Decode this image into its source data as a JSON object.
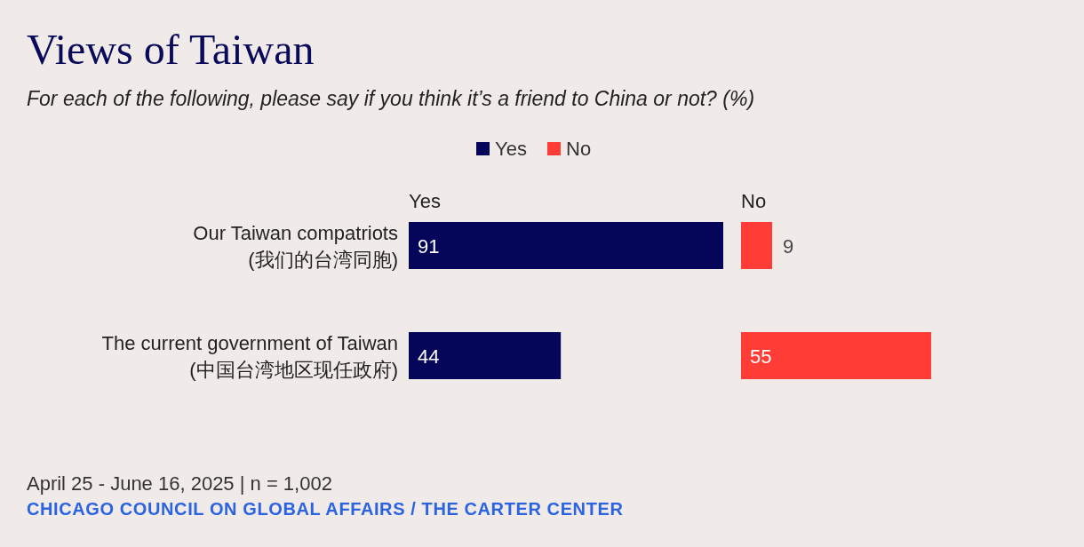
{
  "chart_data": [
    {
      "type": "bar",
      "orientation": "horizontal",
      "title": "Views of Taiwan",
      "subtitle": "For each of the following, please say if you think it’s a friend to China or not? (%)",
      "categories": [
        "Our Taiwan compatriots\n(我们的台湾同胞)",
        "The current government of Taiwan\n(中国台湾地区现任政府)"
      ],
      "series": [
        {
          "name": "Yes",
          "color": "#05055a",
          "values": [
            91,
            44
          ]
        }
      ],
      "data_labels": true,
      "legend": "top",
      "annotations": [
        "April 25 - June 16, 2025 | n = 1,002",
        "CHICAGO COUNCIL ON GLOBAL AFFAIRS / THE CARTER CENTER"
      ]
    },
    {
      "type": "bar",
      "orientation": "horizontal",
      "categories": [
        null,
        null
      ],
      "series": [
        {
          "name": "No",
          "color": "#ff3c36",
          "values": [
            9,
            55
          ]
        }
      ],
      "data_labels": true,
      "legend": "top"
    }
  ]
}
